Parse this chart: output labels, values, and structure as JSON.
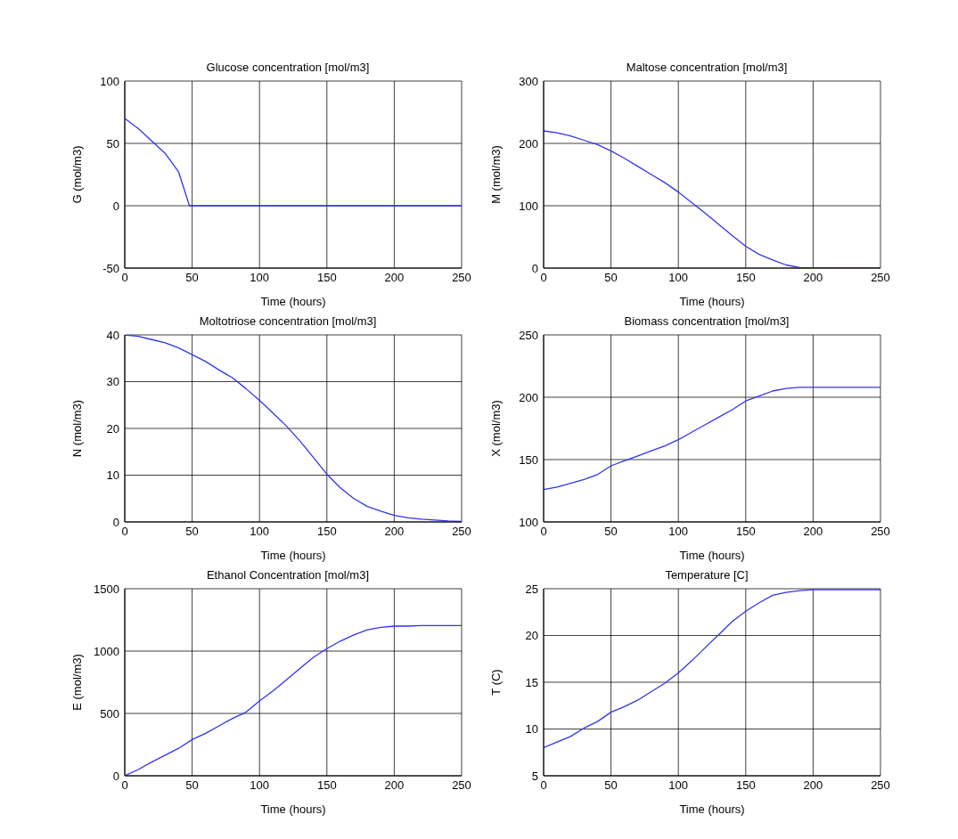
{
  "chart_data": [
    {
      "type": "line",
      "title": "Glucose concentration [mol/m3]",
      "xlabel": "Time (hours)",
      "ylabel": "G (mol/m3)",
      "xlim": [
        0,
        250
      ],
      "xticks": [
        0,
        50,
        100,
        150,
        200,
        250
      ],
      "ylim": [
        -50,
        100
      ],
      "yticks": [
        -50,
        0,
        50,
        100
      ],
      "grid": true,
      "series": [
        {
          "color": "#3333ee",
          "x": [
            0,
            10,
            20,
            30,
            40,
            48,
            50,
            100,
            150,
            200,
            250
          ],
          "values": [
            70,
            62,
            52,
            42,
            27,
            0,
            0,
            0,
            0,
            0,
            0
          ]
        }
      ]
    },
    {
      "type": "line",
      "title": "Maltose concentration [mol/m3]",
      "xlabel": "Time (hours)",
      "ylabel": "M (mol/m3)",
      "xlim": [
        0,
        250
      ],
      "xticks": [
        0,
        50,
        100,
        150,
        200,
        250
      ],
      "ylim": [
        0,
        300
      ],
      "yticks": [
        0,
        100,
        200,
        300
      ],
      "grid": true,
      "series": [
        {
          "color": "#3333ee",
          "x": [
            0,
            10,
            20,
            30,
            40,
            50,
            60,
            70,
            80,
            90,
            100,
            110,
            120,
            130,
            140,
            150,
            160,
            170,
            180,
            190,
            200,
            250
          ],
          "values": [
            220,
            217,
            212,
            205,
            198,
            188,
            176,
            163,
            150,
            137,
            122,
            105,
            88,
            70,
            52,
            35,
            22,
            13,
            5,
            1,
            0,
            0
          ]
        }
      ]
    },
    {
      "type": "line",
      "title": "Moltotriose concentration [mol/m3]",
      "xlabel": "Time (hours)",
      "ylabel": "N (mol/m3)",
      "xlim": [
        0,
        250
      ],
      "xticks": [
        0,
        50,
        100,
        150,
        200,
        250
      ],
      "ylim": [
        0,
        40
      ],
      "yticks": [
        0,
        10,
        20,
        30,
        40
      ],
      "grid": true,
      "series": [
        {
          "color": "#3333ee",
          "x": [
            0,
            10,
            20,
            30,
            40,
            50,
            60,
            70,
            80,
            90,
            100,
            110,
            120,
            130,
            140,
            150,
            160,
            170,
            180,
            190,
            200,
            210,
            220,
            230,
            240,
            250
          ],
          "values": [
            40,
            39.7,
            39,
            38.3,
            37.2,
            35.8,
            34.3,
            32.5,
            30.8,
            28.5,
            26,
            23.3,
            20.5,
            17.3,
            13.8,
            10.2,
            7.3,
            5,
            3.3,
            2.3,
            1.4,
            0.9,
            0.6,
            0.4,
            0.2,
            0.1
          ]
        }
      ]
    },
    {
      "type": "line",
      "title": "Biomass concentration [mol/m3]",
      "xlabel": "Time (hours)",
      "ylabel": "X (mol/m3)",
      "xlim": [
        0,
        250
      ],
      "xticks": [
        0,
        50,
        100,
        150,
        200,
        250
      ],
      "ylim": [
        100,
        250
      ],
      "yticks": [
        100,
        150,
        200,
        250
      ],
      "grid": true,
      "series": [
        {
          "color": "#3333ee",
          "x": [
            0,
            10,
            20,
            30,
            40,
            50,
            60,
            70,
            80,
            90,
            100,
            110,
            120,
            130,
            140,
            150,
            160,
            170,
            180,
            190,
            200,
            250
          ],
          "values": [
            126,
            128,
            131,
            134,
            138,
            145,
            149,
            153,
            157,
            161,
            166,
            172,
            178,
            184,
            190,
            197,
            201,
            205,
            207,
            208,
            208,
            208
          ]
        }
      ]
    },
    {
      "type": "line",
      "title": "Ethanol Concentration [mol/m3]",
      "xlabel": "Time (hours)",
      "ylabel": "E (mol/m3)",
      "xlim": [
        0,
        250
      ],
      "xticks": [
        0,
        50,
        100,
        150,
        200,
        250
      ],
      "ylim": [
        0,
        1500
      ],
      "yticks": [
        0,
        500,
        1000,
        1500
      ],
      "grid": true,
      "series": [
        {
          "color": "#3333ee",
          "x": [
            0,
            10,
            20,
            30,
            40,
            50,
            60,
            70,
            80,
            90,
            100,
            110,
            120,
            130,
            140,
            150,
            160,
            170,
            180,
            190,
            200,
            210,
            220,
            250
          ],
          "values": [
            0,
            50,
            110,
            165,
            220,
            290,
            340,
            400,
            460,
            510,
            600,
            680,
            770,
            860,
            950,
            1020,
            1080,
            1130,
            1170,
            1190,
            1200,
            1200,
            1205,
            1205
          ]
        }
      ]
    },
    {
      "type": "line",
      "title": "Temperature [C]",
      "xlabel": "Time (hours)",
      "ylabel": "T (C)",
      "xlim": [
        0,
        250
      ],
      "xticks": [
        0,
        50,
        100,
        150,
        200,
        250
      ],
      "ylim": [
        5,
        25
      ],
      "yticks": [
        5,
        10,
        15,
        20,
        25
      ],
      "grid": true,
      "series": [
        {
          "color": "#3333ee",
          "x": [
            0,
            10,
            20,
            30,
            40,
            50,
            60,
            70,
            80,
            90,
            100,
            110,
            120,
            130,
            140,
            150,
            160,
            170,
            180,
            190,
            200,
            210,
            220,
            250
          ],
          "values": [
            8,
            8.6,
            9.2,
            10.1,
            10.8,
            11.8,
            12.4,
            13.1,
            14,
            14.9,
            16,
            17.3,
            18.7,
            20.1,
            21.5,
            22.6,
            23.5,
            24.3,
            24.6,
            24.8,
            24.9,
            24.9,
            24.9,
            24.9
          ]
        }
      ]
    }
  ]
}
